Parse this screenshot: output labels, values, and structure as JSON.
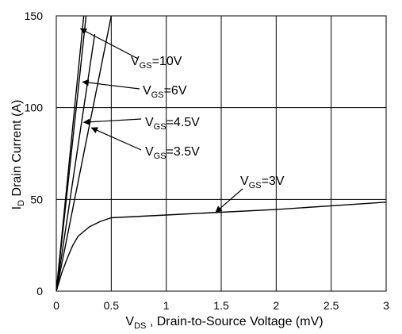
{
  "chart_data": {
    "type": "line",
    "xlabel": {
      "main": "V",
      "sub": "DS",
      "rest": " , Drain-to-Source Voltage (mV)"
    },
    "ylabel": {
      "main": "I",
      "sub": "D",
      "rest": " Drain Current (A)"
    },
    "xlim": [
      0,
      3
    ],
    "ylim": [
      0,
      150
    ],
    "xticks": [
      "0",
      "0.5",
      "1",
      "1.5",
      "2",
      "2.5",
      "3"
    ],
    "yticks": [
      "0",
      "50",
      "100",
      "150"
    ],
    "xtick_values": [
      0,
      0.5,
      1,
      1.5,
      2,
      2.5,
      3
    ],
    "ytick_values": [
      0,
      50,
      100,
      150
    ],
    "grid": true,
    "series": [
      {
        "name": "VGS=10V",
        "x": [
          0,
          0.1,
          0.2,
          0.3
        ],
        "y": [
          0,
          60,
          120,
          180
        ]
      },
      {
        "name": "VGS=6V",
        "x": [
          0,
          0.1,
          0.2,
          0.28
        ],
        "y": [
          0,
          55,
          110,
          155
        ]
      },
      {
        "name": "VGS=4.5V",
        "x": [
          0,
          0.1,
          0.2,
          0.3,
          0.35
        ],
        "y": [
          0,
          40,
          80,
          120,
          140
        ]
      },
      {
        "name": "VGS=3.5V",
        "x": [
          0,
          0.1,
          0.2,
          0.3,
          0.4,
          0.5
        ],
        "y": [
          0,
          30,
          60,
          90,
          120,
          150
        ]
      },
      {
        "name": "VGS=3V",
        "x": [
          0,
          0.05,
          0.1,
          0.15,
          0.2,
          0.3,
          0.4,
          0.5,
          1,
          1.5,
          2,
          2.5,
          3
        ],
        "y": [
          0,
          10,
          18,
          25,
          30,
          35,
          38,
          40,
          41.5,
          43,
          44.5,
          46.5,
          48.5
        ]
      }
    ],
    "annotations": [
      {
        "main": "V",
        "sub": "GS",
        "rest": "=10V",
        "target": [
          0.22,
          143
        ]
      },
      {
        "main": "V",
        "sub": "GS",
        "rest": "=6V",
        "target": [
          0.24,
          114
        ]
      },
      {
        "main": "V",
        "sub": "GS",
        "rest": "=4.5V",
        "target": [
          0.25,
          92
        ]
      },
      {
        "main": "V",
        "sub": "GS",
        "rest": "=3.5V",
        "target": [
          0.32,
          89
        ]
      },
      {
        "main": "V",
        "sub": "GS",
        "rest": "=3V",
        "target": [
          1.45,
          43
        ]
      }
    ]
  }
}
